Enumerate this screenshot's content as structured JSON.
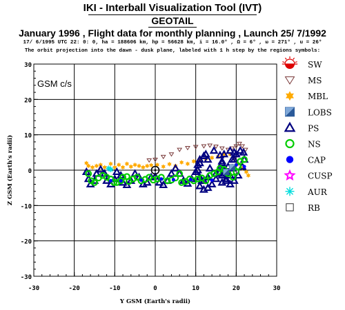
{
  "header": {
    "title": "IKI - Interball Visualization Tool (IVT)",
    "subtitle": "GEOTAIL",
    "heading": "January 1996 ,  Flight data for monthly planning ,   Launch 25/ 7/1992",
    "params": "17/ 6/1995 UTC 22: 0: 0, ha = 188606 km, hp = 56628 km, i = 16.0° , Ω =    6° , ω = 271° , u =  26°",
    "note": "The orbit projection into the dawn - dusk plane, labeled with 1 h step by the regions symbols:"
  },
  "colors": {
    "sw": "#dd0000",
    "ms": "#7a3a3a",
    "mbl": "#ffaa00",
    "lobs": "#2a5a9a",
    "ps": "#000080",
    "ns": "#00cc00",
    "cap": "#0000ff",
    "cusp": "#ff00ff",
    "aur": "#00dddd",
    "rb": "#333333"
  },
  "chart_data": {
    "type": "scatter",
    "frame_label": "GSM c/s",
    "xlabel": "Y GSM (Earth's radii)",
    "ylabel": "Z GSM (Earth's radii)",
    "xlim": [
      -30,
      30
    ],
    "ylim": [
      -30,
      30
    ],
    "xticks": [
      -30,
      -20,
      -10,
      0,
      10,
      20,
      30
    ],
    "yticks": [
      -30,
      -20,
      -10,
      0,
      10,
      20,
      30
    ],
    "x_tick_labels": [
      "-30",
      "-20",
      "-10",
      "0",
      "10",
      "20",
      "30"
    ],
    "y_tick_labels": [
      "-30",
      "-20",
      "-10",
      "0",
      "10",
      "20",
      "30"
    ],
    "grid": true,
    "earth": {
      "x": 0,
      "y": 0,
      "label": "Earth"
    },
    "legend": {
      "position": "right",
      "entries": [
        {
          "key": "sw",
          "label": "SW",
          "icon": "sun-icon"
        },
        {
          "key": "ms",
          "label": "MS",
          "icon": "triangle-down-icon"
        },
        {
          "key": "mbl",
          "label": "MBL",
          "icon": "star-of-david-icon"
        },
        {
          "key": "lobs",
          "label": "LOBS",
          "icon": "half-filled-square-icon"
        },
        {
          "key": "ps",
          "label": "PS",
          "icon": "triangle-up-icon"
        },
        {
          "key": "ns",
          "label": "NS",
          "icon": "circle-icon"
        },
        {
          "key": "cap",
          "label": "CAP",
          "icon": "filled-circle-icon"
        },
        {
          "key": "cusp",
          "label": "CUSP",
          "icon": "star-icon"
        },
        {
          "key": "aur",
          "label": "AUR",
          "icon": "asterisk-icon"
        },
        {
          "key": "rb",
          "label": "RB",
          "icon": "square-icon"
        }
      ]
    },
    "series": [
      {
        "key": "ms",
        "points": [
          [
            -1.5,
            2.8
          ],
          [
            0,
            3
          ],
          [
            2,
            3.8
          ],
          [
            4,
            4.5
          ],
          [
            6,
            5.8
          ],
          [
            8,
            6.3
          ],
          [
            10,
            6.6
          ],
          [
            12,
            6.8
          ],
          [
            13.5,
            7
          ],
          [
            15,
            6.7
          ],
          [
            16.5,
            6.2
          ],
          [
            18,
            5.8
          ],
          [
            19,
            6.2
          ],
          [
            20,
            6.8
          ],
          [
            20.8,
            7.5
          ],
          [
            21.5,
            6.8
          ],
          [
            22.3,
            5.8
          ]
        ]
      },
      {
        "key": "mbl",
        "points": [
          [
            -17,
            2
          ],
          [
            -16.5,
            1.2
          ],
          [
            -15.5,
            0.8
          ],
          [
            -14.5,
            1.2
          ],
          [
            -13.5,
            1.5
          ],
          [
            -12.5,
            0.8
          ],
          [
            -11,
            1.8
          ],
          [
            -10,
            0.8
          ],
          [
            -9,
            1.5
          ],
          [
            -8,
            0.8
          ],
          [
            -7,
            1.8
          ],
          [
            -6,
            1
          ],
          [
            -5,
            1.5
          ],
          [
            -4,
            1.2
          ],
          [
            -3,
            0.8
          ],
          [
            -2,
            1.2
          ],
          [
            -1,
            1.4
          ],
          [
            0.5,
            1.5
          ],
          [
            2,
            1
          ],
          [
            3.5,
            1.7
          ],
          [
            5,
            1.2
          ],
          [
            6.5,
            2.2
          ],
          [
            8,
            1.8
          ],
          [
            9.5,
            2.5
          ],
          [
            11,
            2.8
          ],
          [
            12.5,
            3.2
          ],
          [
            14,
            3.5
          ],
          [
            15.5,
            3.8
          ],
          [
            17,
            4.5
          ],
          [
            18.5,
            4.5
          ],
          [
            19.5,
            3.2
          ],
          [
            20.5,
            1.8
          ],
          [
            21.5,
            0.5
          ],
          [
            22.5,
            -0.5
          ],
          [
            23,
            -1.5
          ]
        ]
      },
      {
        "key": "ps",
        "points": [
          [
            -17,
            -0.5
          ],
          [
            -16.5,
            -2.5
          ],
          [
            -16,
            -4
          ],
          [
            -15,
            -3
          ],
          [
            -14.5,
            -1
          ],
          [
            -13.5,
            0.2
          ],
          [
            -12.5,
            -1
          ],
          [
            -12,
            -3
          ],
          [
            -11,
            -4
          ],
          [
            -10,
            -2.5
          ],
          [
            -9.5,
            -0.5
          ],
          [
            -8.5,
            -1.5
          ],
          [
            -8,
            -3.5
          ],
          [
            -7,
            -4.2
          ],
          [
            -6,
            -3
          ],
          [
            -5,
            -1
          ],
          [
            -4,
            -2
          ],
          [
            -3,
            -4
          ],
          [
            -2,
            -3.5
          ],
          [
            -1,
            -2
          ],
          [
            0,
            -1.8
          ],
          [
            1,
            -3.5
          ],
          [
            2,
            -4.2
          ],
          [
            3,
            -3
          ],
          [
            4,
            -1
          ],
          [
            5,
            0.5
          ],
          [
            6,
            -1
          ],
          [
            7,
            -3
          ],
          [
            8,
            -3.8
          ],
          [
            9,
            -2.5
          ],
          [
            10,
            -0.5
          ],
          [
            10.5,
            1.5
          ],
          [
            11,
            3
          ],
          [
            12,
            4
          ],
          [
            13,
            3
          ],
          [
            13.5,
            0.5
          ],
          [
            13,
            -2
          ],
          [
            12,
            -3
          ],
          [
            11,
            -2
          ],
          [
            10.5,
            0
          ],
          [
            11,
            2
          ],
          [
            12.5,
            4.5
          ],
          [
            14.5,
            5.5
          ],
          [
            16,
            4.2
          ],
          [
            16.5,
            2
          ],
          [
            16,
            -0.5
          ],
          [
            15,
            -2.5
          ],
          [
            14,
            -4
          ],
          [
            13,
            -5
          ],
          [
            12,
            -5.5
          ],
          [
            11,
            -4.5
          ],
          [
            11.5,
            -3
          ],
          [
            13,
            -2
          ],
          [
            15,
            -1
          ],
          [
            16,
            0.5
          ],
          [
            16.5,
            2.5
          ],
          [
            17,
            4.5
          ],
          [
            18.5,
            5.5
          ],
          [
            19.5,
            5
          ],
          [
            19.5,
            3
          ],
          [
            19,
            0.5
          ],
          [
            18.5,
            -1.5
          ],
          [
            17.5,
            -3
          ],
          [
            16.5,
            -3.5
          ],
          [
            17,
            -1
          ],
          [
            18,
            1
          ],
          [
            19,
            3
          ],
          [
            20,
            4.5
          ],
          [
            21,
            5.5
          ],
          [
            21.8,
            5
          ],
          [
            22,
            3
          ],
          [
            21.5,
            1
          ],
          [
            20.5,
            -1.5
          ],
          [
            19.5,
            -3
          ],
          [
            18.5,
            -4
          ],
          [
            17.5,
            -2.5
          ],
          [
            17,
            0
          ],
          [
            16.5,
            -1.5
          ]
        ]
      },
      {
        "key": "ns",
        "points": [
          [
            -16.5,
            -1
          ],
          [
            -15.8,
            -3
          ],
          [
            -15,
            -3.5
          ],
          [
            -14,
            -2.2
          ],
          [
            -13,
            -1.5
          ],
          [
            -12,
            -2
          ],
          [
            -11,
            -2.5
          ],
          [
            -10.2,
            -3.5
          ],
          [
            -9.5,
            -3.5
          ],
          [
            -8.5,
            -3
          ],
          [
            -8,
            -2
          ],
          [
            -7,
            -1.8
          ],
          [
            -6.5,
            -3.2
          ],
          [
            -5.5,
            -2.5
          ],
          [
            -4.5,
            -2
          ],
          [
            -3.5,
            -3
          ],
          [
            -2.5,
            -2.6
          ],
          [
            -1.5,
            -2
          ],
          [
            -0.5,
            -2.8
          ],
          [
            0.5,
            -2.5
          ],
          [
            1.5,
            -2
          ],
          [
            3,
            -3
          ],
          [
            4,
            -2.8
          ],
          [
            5,
            -2.2
          ],
          [
            6,
            -1
          ],
          [
            6.5,
            -3.5
          ],
          [
            7.5,
            -3.2
          ],
          [
            8.5,
            -2.5
          ],
          [
            9.5,
            -3
          ],
          [
            10.5,
            -2.5
          ],
          [
            11.5,
            -2.2
          ],
          [
            12.5,
            -3
          ],
          [
            13.5,
            -1.5
          ],
          [
            14.5,
            -1
          ],
          [
            15.5,
            -0.5
          ],
          [
            16,
            0.5
          ],
          [
            17,
            0.2
          ],
          [
            18,
            -1
          ],
          [
            19.2,
            -2
          ],
          [
            20,
            -0.5
          ],
          [
            20.5,
            1
          ],
          [
            21,
            2.5
          ],
          [
            22,
            3
          ]
        ]
      },
      {
        "key": "cap",
        "points": [
          [
            -11,
            -3
          ],
          [
            -8.5,
            -3
          ],
          [
            -3.5,
            -2.8
          ],
          [
            1.5,
            -2.5
          ],
          [
            4.5,
            -2.7
          ],
          [
            8.8,
            -2.7
          ],
          [
            14,
            -2.8
          ],
          [
            20,
            1.5
          ],
          [
            22,
            1
          ]
        ]
      },
      {
        "key": "aur",
        "points": [
          [
            -11.5,
            0.5
          ],
          [
            -11,
            0.2
          ]
        ]
      },
      {
        "key": "lobs",
        "points": [
          [
            17.5,
            -0.5
          ],
          [
            19,
            0.8
          ]
        ]
      }
    ]
  }
}
